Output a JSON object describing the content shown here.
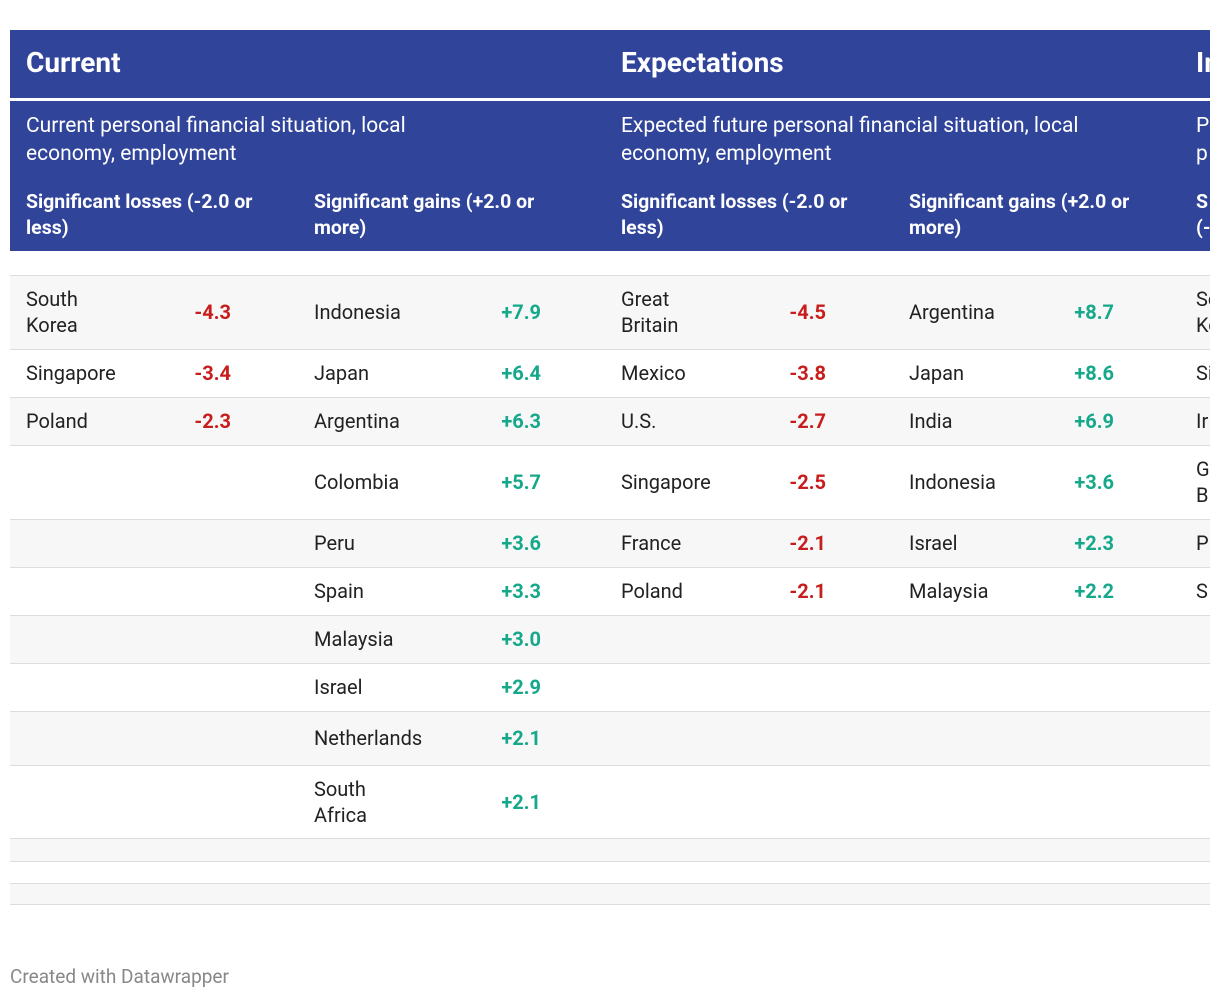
{
  "header": {
    "groups": [
      {
        "title": "Current",
        "description": "Current personal financial situation, local economy, employment",
        "losses_header": "Significant losses (-2.0 or less)",
        "gains_header": "Significant gains (+2.0 or more)"
      },
      {
        "title": "Expectations",
        "description": "Expected future personal financial situation, local economy, employment",
        "losses_header": "Significant losses (-2.0 or less)",
        "gains_header": "Significant gains (+2.0 or more)"
      },
      {
        "title": "In",
        "description": "P\np",
        "losses_header": "S\n(-"
      }
    ]
  },
  "table": {
    "columns": [
      [
        {
          "country": "South\nKorea",
          "value": "-4.3"
        },
        {
          "country": "Singapore",
          "value": "-3.4"
        },
        {
          "country": "Poland",
          "value": "-2.3"
        }
      ],
      [
        {
          "country": "Indonesia",
          "value": "+7.9"
        },
        {
          "country": "Japan",
          "value": "+6.4"
        },
        {
          "country": "Argentina",
          "value": "+6.3"
        },
        {
          "country": "Colombia",
          "value": "+5.7"
        },
        {
          "country": "Peru",
          "value": "+3.6"
        },
        {
          "country": "Spain",
          "value": "+3.3"
        },
        {
          "country": "Malaysia",
          "value": "+3.0"
        },
        {
          "country": "Israel",
          "value": "+2.9"
        },
        {
          "country": "Netherlands",
          "value": "+2.1"
        },
        {
          "country": "South\nAfrica",
          "value": "+2.1"
        }
      ],
      [
        {
          "country": "Great\nBritain",
          "value": "-4.5"
        },
        {
          "country": "Mexico",
          "value": "-3.8"
        },
        {
          "country": "U.S.",
          "value": "-2.7"
        },
        {
          "country": "Singapore",
          "value": "-2.5"
        },
        {
          "country": "France",
          "value": "-2.1"
        },
        {
          "country": "Poland",
          "value": "-2.1"
        }
      ],
      [
        {
          "country": "Argentina",
          "value": "+8.7"
        },
        {
          "country": "Japan",
          "value": "+8.6"
        },
        {
          "country": "India",
          "value": "+6.9"
        },
        {
          "country": "Indonesia",
          "value": "+3.6"
        },
        {
          "country": "Israel",
          "value": "+2.3"
        },
        {
          "country": "Malaysia",
          "value": "+2.2"
        }
      ],
      [
        {
          "country": "So\nKo"
        },
        {
          "country": "Si"
        },
        {
          "country": "Ir"
        },
        {
          "country": "G\nB"
        },
        {
          "country": "P"
        },
        {
          "country": "S"
        }
      ]
    ]
  },
  "footer": "Created with Datawrapper"
}
